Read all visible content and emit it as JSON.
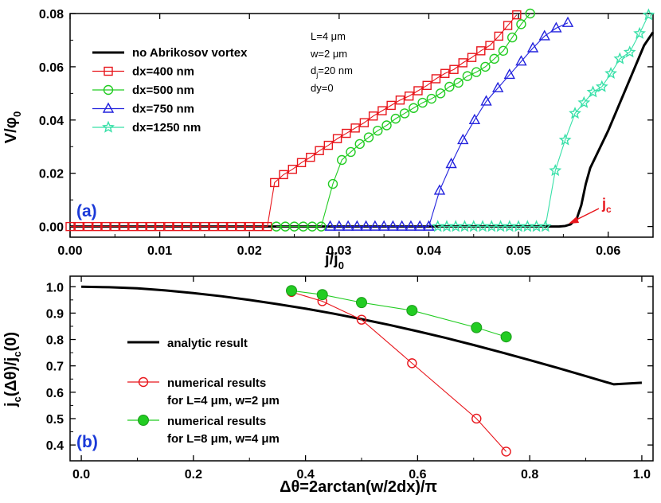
{
  "chart_data": [
    {
      "type": "line",
      "panel_label": "(a)",
      "xlabel": "j/j_0",
      "ylabel": "V/φ_0",
      "xlim": [
        0.0,
        0.065
      ],
      "ylim": [
        -0.004,
        0.08
      ],
      "xticks": [
        "0.00",
        "0.01",
        "0.02",
        "0.03",
        "0.04",
        "0.05",
        "0.06"
      ],
      "yticks": [
        "0.00",
        "0.02",
        "0.04",
        "0.06",
        "0.08"
      ],
      "params": [
        "L=4 μm",
        "w=2 μm",
        "d_j=20 nm",
        "dy=0"
      ],
      "annotation": "j_c",
      "series": [
        {
          "name": "no Abrikosov vortex",
          "color": "#000000",
          "marker": "none",
          "x": [
            0.0,
            0.054,
            0.0545,
            0.0552,
            0.0558,
            0.0565,
            0.057,
            0.0575,
            0.058,
            0.059,
            0.06,
            0.061,
            0.062,
            0.063,
            0.064,
            0.065
          ],
          "y": [
            0.0,
            0.0,
            0.0,
            0.0002,
            0.0008,
            0.003,
            0.008,
            0.016,
            0.022,
            0.029,
            0.036,
            0.044,
            0.052,
            0.06,
            0.068,
            0.073
          ]
        },
        {
          "name": "dx=400 nm",
          "color": "#e8161c",
          "marker": "square",
          "x": [
            0.0,
            0.001,
            0.002,
            0.003,
            0.004,
            0.005,
            0.006,
            0.007,
            0.008,
            0.009,
            0.01,
            0.011,
            0.012,
            0.013,
            0.014,
            0.015,
            0.016,
            0.017,
            0.018,
            0.019,
            0.02,
            0.021,
            0.022,
            0.0228,
            0.0238,
            0.0248,
            0.0258,
            0.0268,
            0.0278,
            0.0288,
            0.0298,
            0.0308,
            0.0318,
            0.0328,
            0.0338,
            0.0348,
            0.0358,
            0.0368,
            0.0378,
            0.0388,
            0.0398,
            0.0408,
            0.0418,
            0.0428,
            0.0438,
            0.0448,
            0.0458,
            0.0468,
            0.0478,
            0.0488,
            0.0498
          ],
          "y": [
            0,
            0,
            0,
            0,
            0,
            0,
            0,
            0,
            0,
            0,
            0,
            0,
            0,
            0,
            0,
            0,
            0,
            0,
            0,
            0,
            0,
            0,
            0,
            0.0165,
            0.0195,
            0.0215,
            0.024,
            0.026,
            0.0285,
            0.0305,
            0.033,
            0.035,
            0.037,
            0.039,
            0.0415,
            0.0435,
            0.0455,
            0.0475,
            0.049,
            0.051,
            0.053,
            0.0555,
            0.0575,
            0.059,
            0.0615,
            0.0635,
            0.066,
            0.068,
            0.0715,
            0.0755,
            0.0795
          ]
        },
        {
          "name": "dx=500 nm",
          "color": "#22cc22",
          "marker": "circle",
          "x": [
            0.023,
            0.024,
            0.025,
            0.026,
            0.027,
            0.028,
            0.0293,
            0.0303,
            0.0313,
            0.0323,
            0.0333,
            0.0343,
            0.0353,
            0.0363,
            0.0373,
            0.0383,
            0.0393,
            0.0403,
            0.0413,
            0.0423,
            0.0433,
            0.0443,
            0.0453,
            0.0463,
            0.0473,
            0.0483,
            0.0493,
            0.0503,
            0.0513
          ],
          "y": [
            0,
            0,
            0,
            0,
            0,
            0,
            0.016,
            0.025,
            0.028,
            0.031,
            0.0335,
            0.036,
            0.038,
            0.0405,
            0.0425,
            0.0445,
            0.0465,
            0.048,
            0.05,
            0.0525,
            0.054,
            0.0565,
            0.058,
            0.06,
            0.063,
            0.066,
            0.071,
            0.076,
            0.08
          ]
        },
        {
          "name": "dx=750 nm",
          "color": "#2222dd",
          "marker": "triangle",
          "x": [
            0.029,
            0.03,
            0.031,
            0.032,
            0.033,
            0.034,
            0.035,
            0.036,
            0.037,
            0.038,
            0.039,
            0.04,
            0.0412,
            0.0425,
            0.0438,
            0.0451,
            0.0464,
            0.0477,
            0.049,
            0.0503,
            0.0516,
            0.0529,
            0.0542,
            0.0555
          ],
          "y": [
            0,
            0,
            0,
            0,
            0,
            0,
            0,
            0,
            0,
            0,
            0,
            0,
            0.0135,
            0.0235,
            0.0325,
            0.04,
            0.047,
            0.052,
            0.057,
            0.062,
            0.067,
            0.0715,
            0.0745,
            0.0765
          ]
        },
        {
          "name": "dx=1250 nm",
          "color": "#38e0a8",
          "marker": "star",
          "x": [
            0.041,
            0.042,
            0.043,
            0.044,
            0.045,
            0.046,
            0.047,
            0.048,
            0.049,
            0.05,
            0.051,
            0.052,
            0.053,
            0.0541,
            0.0552,
            0.0563,
            0.0573,
            0.0583,
            0.0593,
            0.0603,
            0.0613,
            0.0624,
            0.0635,
            0.0645
          ],
          "y": [
            0,
            0,
            0,
            0,
            0,
            0,
            0,
            0,
            0,
            0,
            0,
            0,
            0,
            0.021,
            0.0325,
            0.0425,
            0.0465,
            0.0505,
            0.0525,
            0.0575,
            0.063,
            0.0655,
            0.0725,
            0.0795
          ]
        }
      ]
    },
    {
      "type": "line",
      "panel_label": "(b)",
      "xlabel": "Δθ=2arctan(w/2dx)/π",
      "ylabel": "j_c(Δθ)/j_c(0)",
      "xlim": [
        -0.02,
        1.02
      ],
      "ylim": [
        0.34,
        1.04
      ],
      "xticks": [
        "0.0",
        "0.2",
        "0.4",
        "0.6",
        "0.8",
        "1.0"
      ],
      "yticks": [
        "0.4",
        "0.5",
        "0.6",
        "0.7",
        "0.8",
        "0.9",
        "1.0"
      ],
      "legend": [
        {
          "lines": [
            "analytic result"
          ]
        },
        {
          "lines": [
            "numerical results",
            "for  L=4 μm, w=2 μm"
          ]
        },
        {
          "lines": [
            "numerical results",
            "for L=8 μm, w=4 μm"
          ]
        }
      ],
      "series": [
        {
          "name": "analytic result",
          "color": "#000000",
          "marker": "none",
          "x": [
            0.0,
            0.05,
            0.1,
            0.15,
            0.2,
            0.25,
            0.3,
            0.35,
            0.4,
            0.45,
            0.5,
            0.55,
            0.6,
            0.65,
            0.7,
            0.75,
            0.8,
            0.85,
            0.9,
            0.95,
            1.0
          ],
          "y": [
            1.0,
            0.998,
            0.994,
            0.986,
            0.976,
            0.964,
            0.95,
            0.934,
            0.917,
            0.898,
            0.877,
            0.855,
            0.831,
            0.806,
            0.779,
            0.751,
            0.722,
            0.692,
            0.661,
            0.63,
            0.636
          ]
        },
        {
          "name": "numerical results for  L=4 μm, w=2 μm",
          "color": "#e8161c",
          "marker": "open-circle",
          "x": [
            0.375,
            0.43,
            0.5,
            0.59,
            0.705,
            0.758
          ],
          "y": [
            0.98,
            0.945,
            0.875,
            0.71,
            0.5,
            0.375
          ]
        },
        {
          "name": "numerical results for L=8 μm, w=4 μm",
          "color": "#22cc22",
          "marker": "filled-circle",
          "x": [
            0.375,
            0.43,
            0.5,
            0.59,
            0.705,
            0.758
          ],
          "y": [
            0.985,
            0.97,
            0.94,
            0.91,
            0.845,
            0.81
          ]
        }
      ]
    }
  ]
}
